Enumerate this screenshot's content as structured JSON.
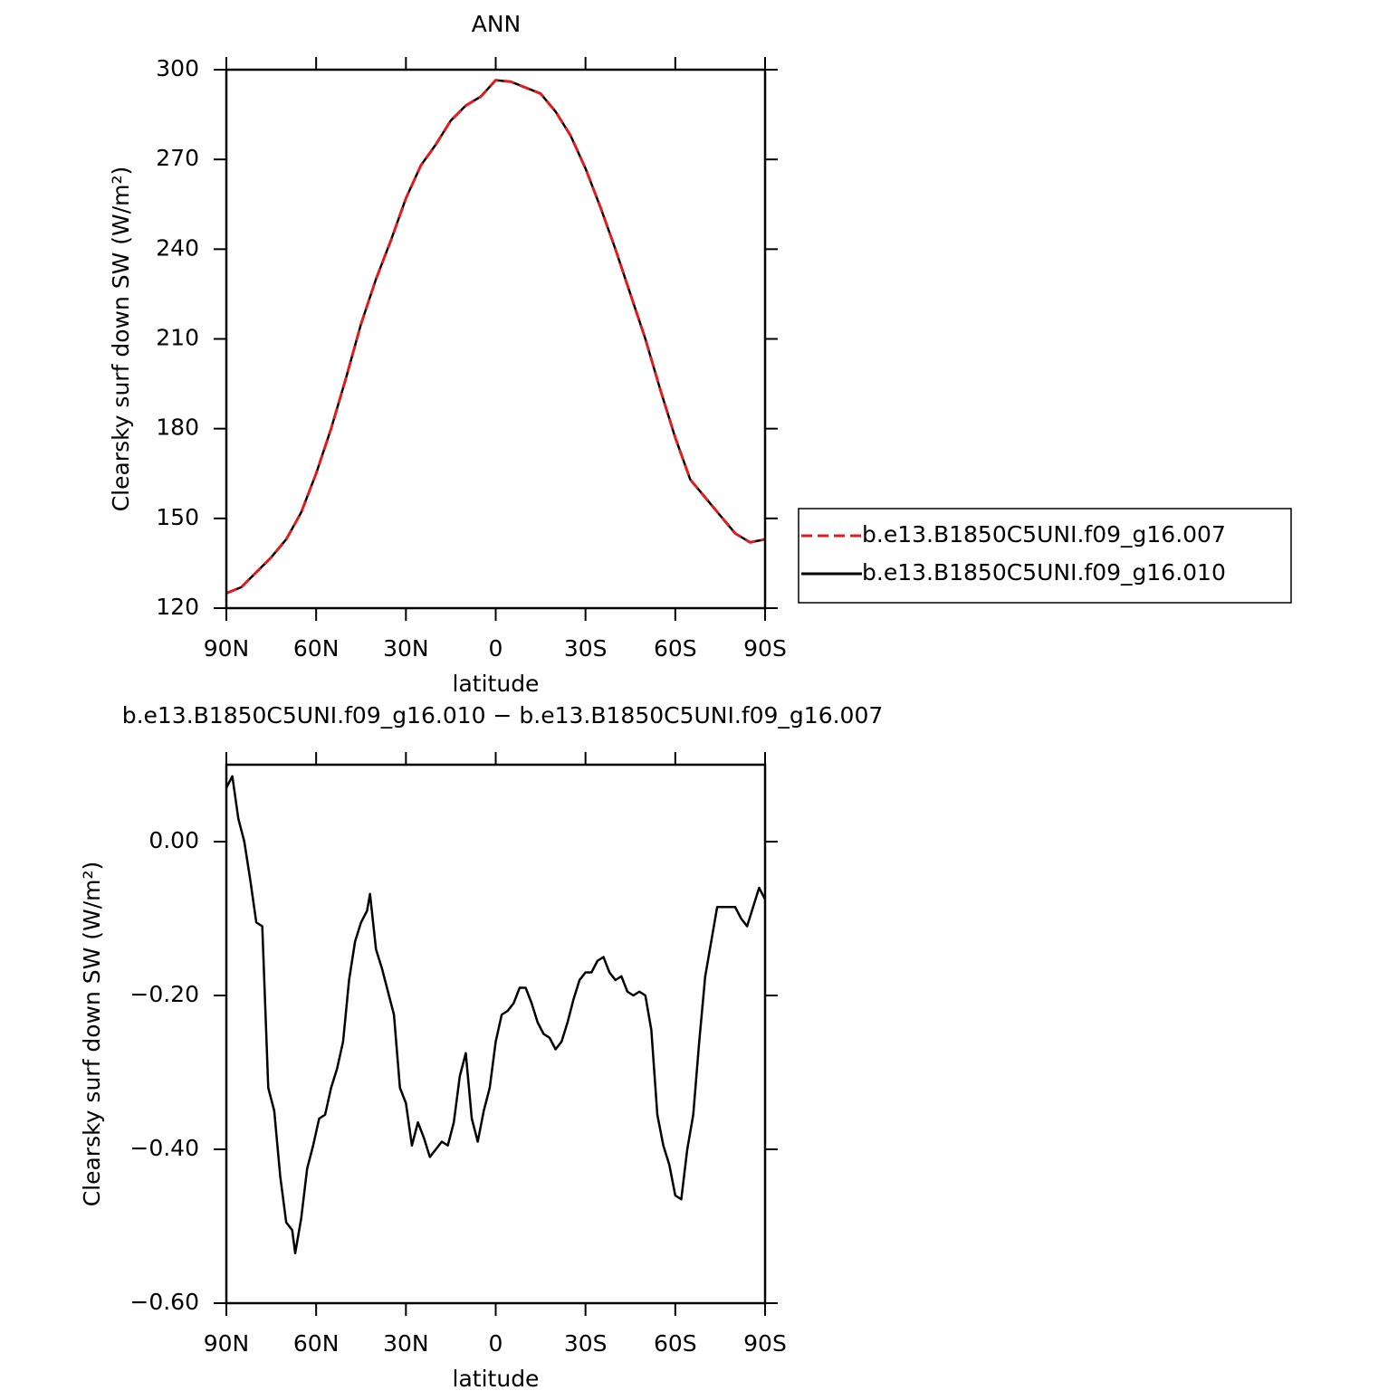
{
  "chart_data": [
    {
      "type": "line",
      "title": "ANN",
      "x_label": "latitude",
      "y_label": "Clearsky surf down SW (W/m²)",
      "x": [
        90,
        85,
        80,
        75,
        70,
        65,
        60,
        55,
        50,
        45,
        40,
        35,
        30,
        25,
        20,
        15,
        10,
        5,
        0,
        -5,
        -10,
        -15,
        -20,
        -25,
        -30,
        -35,
        -40,
        -45,
        -50,
        -55,
        -60,
        -65,
        -70,
        -75,
        -80,
        -85,
        -90
      ],
      "series": [
        {
          "name": "b.e13.B1850C5UNI.f09_g16.007",
          "color": "#e41a1c",
          "style": "dashed",
          "values": [
            125,
            127,
            132,
            137,
            143,
            152,
            165,
            180,
            197,
            215,
            230,
            243,
            257,
            268,
            275,
            283,
            288,
            291,
            296.5,
            296,
            294,
            292,
            286,
            278,
            267,
            254,
            240,
            225,
            210,
            193,
            177,
            163,
            157,
            151,
            145,
            142,
            143
          ]
        },
        {
          "name": "b.e13.B1850C5UNI.f09_g16.010",
          "color": "#000000",
          "style": "solid",
          "values": [
            125,
            127,
            132,
            137,
            143,
            152,
            165,
            180,
            197,
            215,
            230,
            243,
            257,
            268,
            275,
            283,
            288,
            291,
            296.5,
            296,
            294,
            292,
            286,
            278,
            267,
            254,
            240,
            225,
            210,
            193,
            177,
            163,
            157,
            151,
            145,
            142,
            143
          ]
        }
      ],
      "xlim": [
        90,
        -90
      ],
      "xticks": [
        {
          "value": 90,
          "label": "90N"
        },
        {
          "value": 60,
          "label": "60N"
        },
        {
          "value": 30,
          "label": "30N"
        },
        0,
        {
          "value": -30,
          "label": "30S"
        },
        {
          "value": -60,
          "label": "60S"
        },
        {
          "value": -90,
          "label": "90S"
        }
      ],
      "ylim": [
        120,
        300
      ],
      "yticks": [
        120,
        150,
        180,
        210,
        240,
        270,
        300
      ],
      "legend": "right"
    },
    {
      "type": "line",
      "title": "b.e13.B1850C5UNI.f09_g16.010 − b.e13.B1850C5UNI.f09_g16.007",
      "x_label": "latitude",
      "y_label": "Clearsky surf down SW (W/m²)",
      "x": [
        90,
        88,
        86,
        84,
        82,
        80,
        78,
        76,
        74,
        72,
        70,
        68,
        67,
        65,
        63,
        61,
        59,
        57,
        55,
        53,
        51,
        49,
        47,
        45,
        43,
        42,
        40,
        38,
        36,
        34,
        32,
        30,
        28,
        26,
        24,
        22,
        20,
        18,
        16,
        14,
        12,
        10,
        8,
        6,
        4,
        2,
        0,
        -2,
        -4,
        -6,
        -8,
        -10,
        -12,
        -14,
        -16,
        -18,
        -20,
        -22,
        -24,
        -26,
        -28,
        -30,
        -32,
        -34,
        -36,
        -38,
        -40,
        -42,
        -44,
        -46,
        -48,
        -50,
        -52,
        -54,
        -56,
        -58,
        -60,
        -62,
        -64,
        -66,
        -68,
        -70,
        -72,
        -74,
        -76,
        -78,
        -80,
        -82,
        -84,
        -86,
        -88,
        -90
      ],
      "series": [
        {
          "name": "b.e13.B1850C5UNI.f09_g16.010 − b.e13.B1850C5UNI.f09_g16.007",
          "color": "#000000",
          "style": "solid",
          "values": [
            0.07,
            0.085,
            0.03,
            0.0,
            -0.05,
            -0.105,
            -0.11,
            -0.32,
            -0.35,
            -0.435,
            -0.495,
            -0.505,
            -0.535,
            -0.49,
            -0.425,
            -0.395,
            -0.36,
            -0.355,
            -0.32,
            -0.295,
            -0.26,
            -0.18,
            -0.13,
            -0.105,
            -0.09,
            -0.068,
            -0.14,
            -0.165,
            -0.195,
            -0.225,
            -0.32,
            -0.34,
            -0.395,
            -0.365,
            -0.385,
            -0.41,
            -0.4,
            -0.39,
            -0.395,
            -0.365,
            -0.305,
            -0.275,
            -0.36,
            -0.39,
            -0.35,
            -0.32,
            -0.26,
            -0.225,
            -0.22,
            -0.21,
            -0.19,
            -0.19,
            -0.21,
            -0.235,
            -0.25,
            -0.255,
            -0.27,
            -0.26,
            -0.235,
            -0.205,
            -0.18,
            -0.17,
            -0.17,
            -0.155,
            -0.15,
            -0.17,
            -0.18,
            -0.175,
            -0.195,
            -0.2,
            -0.195,
            -0.2,
            -0.245,
            -0.355,
            -0.395,
            -0.42,
            -0.46,
            -0.465,
            -0.4,
            -0.355,
            -0.26,
            -0.175,
            -0.13,
            -0.085,
            -0.085,
            -0.085,
            -0.085,
            -0.1,
            -0.11,
            -0.085,
            -0.06,
            -0.075
          ]
        }
      ],
      "xlim": [
        90,
        -90
      ],
      "xticks": [
        {
          "value": 90,
          "label": "90N"
        },
        {
          "value": 60,
          "label": "60N"
        },
        {
          "value": 30,
          "label": "30N"
        },
        0,
        {
          "value": -30,
          "label": "30S"
        },
        {
          "value": -60,
          "label": "60S"
        },
        {
          "value": -90,
          "label": "90S"
        }
      ],
      "ylim": [
        -0.6,
        0.1
      ],
      "yticks": [
        {
          "value": -0.6,
          "label": "−0.60"
        },
        {
          "value": -0.4,
          "label": "−0.40"
        },
        {
          "value": -0.2,
          "label": "−0.20"
        },
        {
          "value": 0,
          "label": "0.00"
        }
      ]
    }
  ]
}
